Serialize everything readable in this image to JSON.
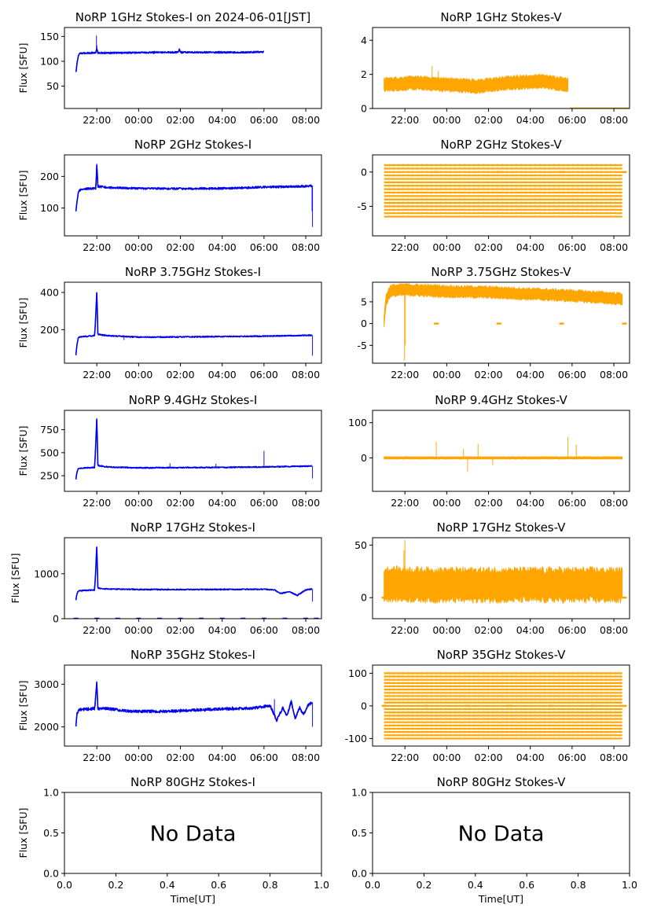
{
  "figure": {
    "ylabel": "Flux [SFU]",
    "xlabel": "Time[UT]",
    "no_data_text": "No Data",
    "time_ticks": [
      "22:00",
      "00:00",
      "02:00",
      "04:00",
      "06:00",
      "08:00"
    ],
    "colors": {
      "stokes_i": "#0000ee",
      "stokes_v": "#ffa500",
      "axes": "#000000",
      "background": "#ffffff"
    }
  },
  "chart_data": [
    {
      "type": "line",
      "title": "NoRP 1GHz Stokes-I on 2024-06-01[JST]",
      "ylabel": "Flux [SFU]",
      "ylim": [
        5,
        168
      ],
      "yticks": [
        50,
        100,
        150
      ],
      "xlim_hours": [
        20.45,
        32.75
      ],
      "series": [
        {
          "name": "Stokes-I",
          "color": "#0000ee",
          "noise": 1.5,
          "points": [
            [
              21.0,
              78
            ],
            [
              21.05,
              95
            ],
            [
              21.12,
              112
            ],
            [
              21.2,
              116
            ],
            [
              21.95,
              117
            ],
            [
              22.0,
              126
            ],
            [
              22.05,
              117
            ],
            [
              23.0,
              117
            ],
            [
              25.0,
              118
            ],
            [
              25.9,
              118
            ],
            [
              25.95,
              124
            ],
            [
              26.0,
              118
            ],
            [
              29.0,
              118
            ],
            [
              30.0,
              119
            ]
          ],
          "spikes": [
            [
              21.98,
              152
            ],
            [
              22.0,
              132
            ],
            [
              25.95,
              126
            ]
          ]
        }
      ]
    },
    {
      "type": "line",
      "title": "NoRP 1GHz Stokes-V",
      "ylabel": "",
      "ylim": [
        0,
        4.75
      ],
      "yticks": [
        0,
        2,
        4
      ],
      "xlim_hours": [
        20.45,
        32.75
      ],
      "series": [
        {
          "name": "Stokes-V",
          "color": "#ffa500",
          "noise": 0.35,
          "band": true,
          "points": [
            [
              21.0,
              1.4
            ],
            [
              22.5,
              1.5
            ],
            [
              24.0,
              1.4
            ],
            [
              25.5,
              1.3
            ],
            [
              27.0,
              1.5
            ],
            [
              28.5,
              1.6
            ],
            [
              29.8,
              1.4
            ]
          ],
          "spikes": [
            [
              23.3,
              2.5
            ],
            [
              23.6,
              2.2
            ],
            [
              27.5,
              2.0
            ]
          ],
          "zero_segment": [
            29.9,
            32.7
          ]
        }
      ]
    },
    {
      "type": "line",
      "title": "NoRP 2GHz Stokes-I",
      "ylabel": "Flux [SFU]",
      "ylim": [
        12,
        268
      ],
      "yticks": [
        100,
        200
      ],
      "xlim_hours": [
        20.45,
        32.75
      ],
      "series": [
        {
          "name": "Stokes-I",
          "color": "#0000ee",
          "noise": 3,
          "points": [
            [
              21.0,
              88
            ],
            [
              21.05,
              120
            ],
            [
              21.12,
              152
            ],
            [
              21.25,
              160
            ],
            [
              21.95,
              162
            ],
            [
              22.0,
              240
            ],
            [
              22.05,
              168
            ],
            [
              22.5,
              165
            ],
            [
              24.0,
              162
            ],
            [
              26.0,
              161
            ],
            [
              28.0,
              162
            ],
            [
              30.0,
              166
            ],
            [
              31.5,
              168
            ],
            [
              32.3,
              170
            ]
          ],
          "spikes": [
            [
              32.32,
              40
            ],
            [
              32.3,
              90
            ],
            [
              22.0,
              230
            ]
          ]
        }
      ]
    },
    {
      "type": "line",
      "title": "NoRP 2GHz Stokes-V",
      "ylabel": "",
      "ylim": [
        -9.3,
        2.5
      ],
      "yticks": [
        -5,
        0
      ],
      "xlim_hours": [
        20.45,
        32.75
      ],
      "series": [
        {
          "name": "Stokes-V",
          "color": "#ffa500",
          "stripes": [
            -6.5,
            1.0,
            0.5
          ],
          "stripe_range": [
            21.0,
            32.4
          ],
          "zero_marks": [
            23.5,
            26.5,
            29.5,
            32.5
          ]
        }
      ]
    },
    {
      "type": "line",
      "title": "NoRP 3.75GHz Stokes-I",
      "ylabel": "Flux [SFU]",
      "ylim": [
        20,
        455
      ],
      "yticks": [
        200,
        400
      ],
      "xlim_hours": [
        20.45,
        32.75
      ],
      "series": [
        {
          "name": "Stokes-I",
          "color": "#0000ee",
          "noise": 3,
          "points": [
            [
              21.0,
              62
            ],
            [
              21.05,
              120
            ],
            [
              21.12,
              160
            ],
            [
              21.9,
              168
            ],
            [
              22.0,
              410
            ],
            [
              22.05,
              175
            ],
            [
              22.5,
              168
            ],
            [
              24.0,
              160
            ],
            [
              26.0,
              161
            ],
            [
              28.0,
              163
            ],
            [
              30.0,
              165
            ],
            [
              32.3,
              170
            ]
          ],
          "spikes": [
            [
              32.32,
              60
            ],
            [
              23.3,
              145
            ]
          ]
        }
      ]
    },
    {
      "type": "line",
      "title": "NoRP 3.75GHz Stokes-V",
      "ylabel": "",
      "ylim": [
        -9.1,
        9.5
      ],
      "yticks": [
        -5,
        0,
        5
      ],
      "xlim_hours": [
        20.45,
        32.75
      ],
      "series": [
        {
          "name": "Stokes-V",
          "color": "#ffa500",
          "noise": 1.2,
          "band": true,
          "points": [
            [
              21.0,
              0.5
            ],
            [
              21.1,
              5.5
            ],
            [
              21.3,
              7.5
            ],
            [
              22.0,
              7.8
            ],
            [
              24.0,
              7.4
            ],
            [
              26.0,
              7.2
            ],
            [
              28.0,
              6.8
            ],
            [
              30.0,
              6.4
            ],
            [
              32.4,
              5.7
            ]
          ],
          "spikes": [
            [
              21.98,
              -8.5
            ],
            [
              22.02,
              -5
            ],
            [
              21.5,
              9
            ]
          ],
          "zero_marks": [
            23.5,
            26.5,
            29.5,
            32.5
          ]
        }
      ]
    },
    {
      "type": "line",
      "title": "NoRP 9.4GHz Stokes-I",
      "ylabel": "Flux [SFU]",
      "ylim": [
        80,
        960
      ],
      "yticks": [
        250,
        500,
        750
      ],
      "xlim_hours": [
        20.45,
        32.75
      ],
      "series": [
        {
          "name": "Stokes-I",
          "color": "#0000ee",
          "noise": 6,
          "points": [
            [
              21.0,
              210
            ],
            [
              21.05,
              290
            ],
            [
              21.12,
              330
            ],
            [
              21.9,
              340
            ],
            [
              22.0,
              895
            ],
            [
              22.05,
              360
            ],
            [
              22.5,
              345
            ],
            [
              24.0,
              335
            ],
            [
              26.0,
              338
            ],
            [
              28.0,
              340
            ],
            [
              30.0,
              345
            ],
            [
              32.3,
              355
            ]
          ],
          "spikes": [
            [
              32.32,
              220
            ],
            [
              25.5,
              385
            ],
            [
              30.0,
              520
            ],
            [
              27.7,
              380
            ]
          ]
        }
      ]
    },
    {
      "type": "line",
      "title": "NoRP 9.4GHz Stokes-V",
      "ylabel": "",
      "ylim": [
        -95,
        135
      ],
      "yticks": [
        0,
        100
      ],
      "xlim_hours": [
        20.45,
        32.75
      ],
      "series": [
        {
          "name": "Stokes-V",
          "color": "#ffa500",
          "noise": 3,
          "band": true,
          "points": [
            [
              21.0,
              0
            ],
            [
              32.4,
              0
            ]
          ],
          "spikes": [
            [
              23.5,
              45
            ],
            [
              25.0,
              -40
            ],
            [
              25.5,
              40
            ],
            [
              29.8,
              60
            ],
            [
              30.2,
              38
            ],
            [
              24.8,
              25
            ],
            [
              26.2,
              -20
            ]
          ]
        }
      ]
    },
    {
      "type": "line",
      "title": "NoRP 17GHz Stokes-I",
      "ylabel": "Flux [SFU]",
      "ylim": [
        0,
        1800
      ],
      "yticks": [
        0,
        1000
      ],
      "xlim_hours": [
        20.45,
        32.75
      ],
      "series": [
        {
          "name": "Stokes-I",
          "color": "#0000ee",
          "noise": 12,
          "points": [
            [
              21.0,
              420
            ],
            [
              21.05,
              560
            ],
            [
              21.12,
              620
            ],
            [
              21.9,
              640
            ],
            [
              22.0,
              1640
            ],
            [
              22.05,
              680
            ],
            [
              22.5,
              660
            ],
            [
              24.0,
              650
            ],
            [
              26.0,
              648
            ],
            [
              28.0,
              650
            ],
            [
              30.0,
              655
            ],
            [
              30.5,
              640
            ],
            [
              30.8,
              560
            ],
            [
              31.2,
              600
            ],
            [
              31.6,
              520
            ],
            [
              32.0,
              640
            ],
            [
              32.3,
              660
            ]
          ],
          "spikes": [
            [
              32.32,
              380
            ]
          ],
          "zero_marks": [
            21.0,
            22.0,
            23.0,
            24.0,
            25.0,
            26.0,
            27.0,
            28.0,
            29.0,
            30.0,
            31.0,
            32.0,
            32.5
          ]
        }
      ]
    },
    {
      "type": "line",
      "title": "NoRP 17GHz Stokes-V",
      "ylabel": "",
      "ylim": [
        -20,
        57
      ],
      "yticks": [
        0,
        50
      ],
      "xlim_hours": [
        20.45,
        32.75
      ],
      "series": [
        {
          "name": "Stokes-V",
          "color": "#ffa500",
          "noise": 14,
          "band": true,
          "points": [
            [
              21.0,
              13
            ],
            [
              24.0,
              12
            ],
            [
              27.0,
              12
            ],
            [
              30.0,
              12
            ],
            [
              32.4,
              12
            ]
          ],
          "spikes": [
            [
              22.0,
              55
            ],
            [
              21.95,
              45
            ]
          ],
          "zero_marks": [
            21.0,
            32.5
          ]
        }
      ]
    },
    {
      "type": "line",
      "title": "NoRP 35GHz Stokes-I",
      "ylabel": "Flux [SFU]",
      "ylim": [
        1550,
        3450
      ],
      "yticks": [
        2000,
        3000
      ],
      "xlim_hours": [
        20.45,
        32.75
      ],
      "series": [
        {
          "name": "Stokes-I",
          "color": "#0000ee",
          "noise": 30,
          "points": [
            [
              21.0,
              2000
            ],
            [
              21.05,
              2300
            ],
            [
              21.12,
              2400
            ],
            [
              21.9,
              2430
            ],
            [
              22.0,
              3080
            ],
            [
              22.05,
              2430
            ],
            [
              22.5,
              2430
            ],
            [
              23.5,
              2370
            ],
            [
              25.0,
              2360
            ],
            [
              26.5,
              2390
            ],
            [
              28.0,
              2420
            ],
            [
              29.5,
              2440
            ],
            [
              30.3,
              2500
            ],
            [
              30.6,
              2150
            ],
            [
              30.9,
              2450
            ],
            [
              31.1,
              2250
            ],
            [
              31.3,
              2600
            ],
            [
              31.5,
              2200
            ],
            [
              31.7,
              2450
            ],
            [
              31.9,
              2300
            ],
            [
              32.1,
              2500
            ],
            [
              32.3,
              2580
            ]
          ],
          "spikes": [
            [
              30.5,
              2650
            ],
            [
              32.32,
              2000
            ]
          ]
        }
      ]
    },
    {
      "type": "line",
      "title": "NoRP 35GHz Stokes-V",
      "ylabel": "",
      "ylim": [
        -123,
        125
      ],
      "yticks": [
        -100,
        0,
        100
      ],
      "xlim_hours": [
        20.45,
        32.75
      ],
      "series": [
        {
          "name": "Stokes-V",
          "color": "#ffa500",
          "stripes": [
            -100,
            100,
            10
          ],
          "stripe_range": [
            21.0,
            32.4
          ],
          "zero_marks": [
            21.0,
            23.0,
            25.0,
            27.0,
            29.0,
            31.0,
            32.5
          ]
        }
      ]
    },
    {
      "type": "line",
      "title": "NoRP 80GHz Stokes-I",
      "ylabel": "Flux [SFU]",
      "xlabel": "Time[UT]",
      "xlim": [
        0,
        1
      ],
      "ylim": [
        0,
        1
      ],
      "xticks": [
        "0.0",
        "0.2",
        "0.4",
        "0.6",
        "0.8",
        "1.0"
      ],
      "yticks": [
        "0.0",
        "0.5",
        "1.0"
      ],
      "annotation": "No Data",
      "series": []
    },
    {
      "type": "line",
      "title": "NoRP 80GHz Stokes-V",
      "ylabel": "",
      "xlabel": "Time[UT]",
      "xlim": [
        0,
        1
      ],
      "ylim": [
        0,
        1
      ],
      "xticks": [
        "0.0",
        "0.2",
        "0.4",
        "0.6",
        "0.8",
        "1.0"
      ],
      "yticks": [
        "0.0",
        "0.5",
        "1.0"
      ],
      "annotation": "No Data",
      "series": []
    }
  ]
}
